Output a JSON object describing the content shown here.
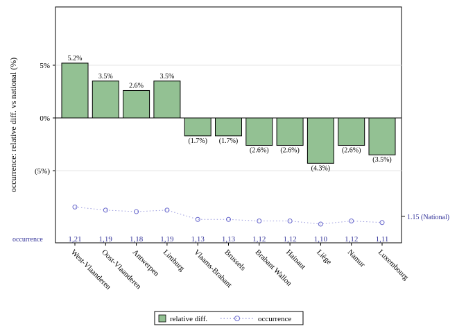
{
  "chart_data": {
    "type": "bar",
    "ylabel": "occurrence: relative diff. vs national (%)",
    "categories": [
      "West-Vlaanderen",
      "Oost-Vlaanderen",
      "Antwerpen",
      "Limburg",
      "Vlaams-Brabant",
      "Brussels",
      "Brabant Wallon",
      "Hainaut",
      "Liège",
      "Namur",
      "Luxembourg"
    ],
    "series": [
      {
        "name": "relative diff.",
        "values": [
          5.2,
          3.5,
          2.6,
          3.5,
          -1.7,
          -1.7,
          -2.6,
          -2.6,
          -4.3,
          -2.6,
          -3.5
        ],
        "labels": [
          "5.2%",
          "3.5%",
          "2.6%",
          "3.5%",
          "(1.7%)",
          "(1.7%)",
          "(2.6%)",
          "(2.6%)",
          "(4.3%)",
          "(2.6%)",
          "(3.5%)"
        ],
        "color": "#93c193"
      },
      {
        "name": "occurrence",
        "values": [
          1.21,
          1.19,
          1.18,
          1.19,
          1.13,
          1.13,
          1.12,
          1.12,
          1.1,
          1.12,
          1.11
        ],
        "labels": [
          "1,21",
          "1,19",
          "1,18",
          "1,19",
          "1,13",
          "1,13",
          "1,12",
          "1,12",
          "1,10",
          "1,12",
          "1,11"
        ],
        "color": "#3333cc"
      }
    ],
    "yticks": [
      5,
      0,
      -5
    ],
    "ytick_labels": [
      "5%",
      "0%",
      "(5%)"
    ],
    "ylim": [
      -11.5,
      10.5
    ],
    "national_value": 1.15,
    "national_label": "1.15 (National)",
    "occurrence_row_label": "occurrence",
    "legend_position": "bottom"
  }
}
